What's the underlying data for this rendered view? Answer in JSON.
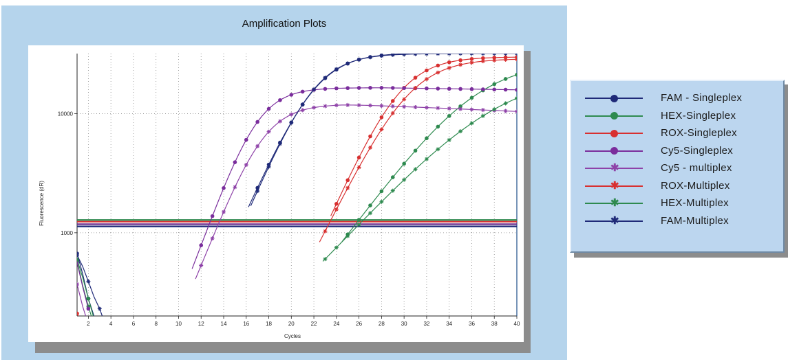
{
  "chart_data": {
    "type": "line",
    "title": "Amplification Plots",
    "xlabel": "Cycles",
    "ylabel": "Fluorescence (dR)",
    "xlim": [
      1,
      40
    ],
    "ylim": [
      200,
      32000
    ],
    "yscale": "log",
    "x_ticks": [
      2,
      4,
      6,
      8,
      10,
      12,
      14,
      16,
      18,
      20,
      22,
      24,
      26,
      28,
      30,
      32,
      34,
      36,
      38,
      40
    ],
    "y_ticks": [
      {
        "value": 1000,
        "label": "1000"
      },
      {
        "value": 10000,
        "label": "10000"
      }
    ],
    "grid": true,
    "legend_position": "right",
    "thresholds": [
      {
        "value": 1280,
        "color": "#2e8a4f"
      },
      {
        "value": 1240,
        "color": "#d83030"
      },
      {
        "value": 1180,
        "color": "#6a2b8c"
      },
      {
        "value": 1130,
        "color": "#1f2a78"
      }
    ],
    "series": [
      {
        "name": "FAM - Singleplex",
        "color": "#1f2a78",
        "marker": "dot",
        "start": {
          "x": [
            1,
            1.5,
            2,
            2.5,
            3
          ],
          "y": [
            670,
            450,
            280,
            200,
            150
          ]
        },
        "curve": {
          "base": 30,
          "top": 32500,
          "mid": 22.1,
          "k": 0.5,
          "from": 16.2
        }
      },
      {
        "name": "HEX-Singleplex",
        "color": "#2e8a4f",
        "marker": "dot",
        "start": {
          "x": [
            1,
            1.5,
            2,
            2.5,
            3
          ],
          "y": [
            580,
            360,
            240,
            170,
            130
          ]
        },
        "curve": {
          "base": 30,
          "top": 28000,
          "mid": 36.2,
          "k": 0.3,
          "from": 24.5
        }
      },
      {
        "name": "ROX-Singleplex",
        "color": "#d83030",
        "marker": "dot",
        "start": {
          "x": [
            1,
            1.5,
            2
          ],
          "y": [
            210,
            170,
            140
          ]
        },
        "curve": {
          "base": 30,
          "top": 30000,
          "mid": 29.6,
          "k": 0.5,
          "from": 23.5
        }
      },
      {
        "name": "Cy5-Singleplex",
        "color": "#7a2d9c",
        "marker": "dot",
        "start": {
          "x": [
            1,
            1.5,
            2
          ],
          "y": [
            560,
            350,
            230
          ]
        },
        "curve": {
          "base": 30,
          "top": 16500,
          "mid": 16.9,
          "k": 0.62,
          "from": 11.2,
          "decay": 0.0033,
          "decayFrom": 28
        }
      },
      {
        "name": "Cy5 - multiplex",
        "color": "#8e42a8",
        "marker": "star",
        "start": {
          "x": [
            1,
            1.5,
            2
          ],
          "y": [
            370,
            240,
            170
          ]
        },
        "curve": {
          "base": 30,
          "top": 12000,
          "mid": 17.4,
          "k": 0.58,
          "from": 11.5,
          "decay": 0.0085,
          "decayFrom": 24.5
        }
      },
      {
        "name": "ROX-Multiplex",
        "color": "#d83030",
        "marker": "star",
        "start": {
          "x": [
            1,
            1.5,
            2
          ],
          "y": [
            190,
            160,
            135
          ]
        },
        "curve": {
          "base": 30,
          "top": 29000,
          "mid": 30.4,
          "k": 0.45,
          "from": 22.5
        }
      },
      {
        "name": "HEX-Multiplex",
        "color": "#2e8a4f",
        "marker": "star",
        "start": {
          "x": [
            1,
            1.5,
            2,
            2.5,
            3
          ],
          "y": [
            600,
            420,
            280,
            190,
            140
          ]
        },
        "curve": {
          "base": 30,
          "top": 22000,
          "mid": 38.1,
          "k": 0.24,
          "from": 22.8
        }
      },
      {
        "name": "FAM-Multiplex",
        "color": "#1f2a78",
        "marker": "star",
        "start": {
          "x": [
            1,
            1.5,
            2,
            2.5,
            3,
            3.5
          ],
          "y": [
            650,
            520,
            390,
            290,
            230,
            170
          ]
        },
        "curve": {
          "base": 30,
          "top": 32000,
          "mid": 22.0,
          "k": 0.52,
          "from": 16.4
        }
      }
    ]
  }
}
